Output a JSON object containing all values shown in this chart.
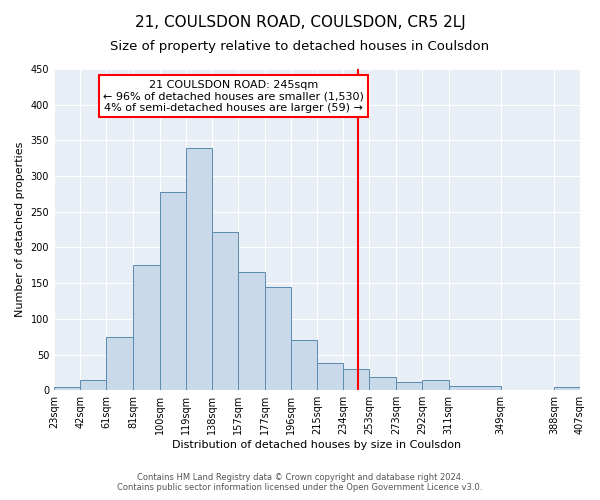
{
  "title": "21, COULSDON ROAD, COULSDON, CR5 2LJ",
  "subtitle": "Size of property relative to detached houses in Coulsdon",
  "xlabel": "Distribution of detached houses by size in Coulsdon",
  "ylabel": "Number of detached properties",
  "bar_values": [
    4,
    14,
    75,
    175,
    278,
    340,
    222,
    165,
    145,
    70,
    38,
    30,
    18,
    12,
    15,
    6,
    0,
    4
  ],
  "bin_edges": [
    23,
    42,
    61,
    81,
    100,
    119,
    138,
    157,
    177,
    196,
    215,
    234,
    253,
    273,
    292,
    311,
    349,
    388,
    407
  ],
  "x_labels": [
    "23sqm",
    "42sqm",
    "61sqm",
    "81sqm",
    "100sqm",
    "119sqm",
    "138sqm",
    "157sqm",
    "177sqm",
    "196sqm",
    "215sqm",
    "234sqm",
    "253sqm",
    "273sqm",
    "292sqm",
    "311sqm",
    "349sqm",
    "388sqm",
    "407sqm"
  ],
  "bar_color": "#c9d9ea",
  "bar_edge_color": "#5a8ab0",
  "vertical_line_x": 245,
  "annotation_text": "21 COULSDON ROAD: 245sqm\n← 96% of detached houses are smaller (1,530)\n4% of semi-detached houses are larger (59) →",
  "annotation_box_color": "white",
  "annotation_box_edge_color": "red",
  "vline_color": "red",
  "ylim": [
    0,
    450
  ],
  "yticks": [
    0,
    50,
    100,
    150,
    200,
    250,
    300,
    350,
    400,
    450
  ],
  "background_color": "#e8eef5",
  "footer_line1": "Contains HM Land Registry data © Crown copyright and database right 2024.",
  "footer_line2": "Contains public sector information licensed under the Open Government Licence v3.0.",
  "title_fontsize": 11,
  "subtitle_fontsize": 9.5,
  "label_fontsize": 8,
  "tick_fontsize": 7,
  "annotation_fontsize": 8,
  "footer_fontsize": 6
}
